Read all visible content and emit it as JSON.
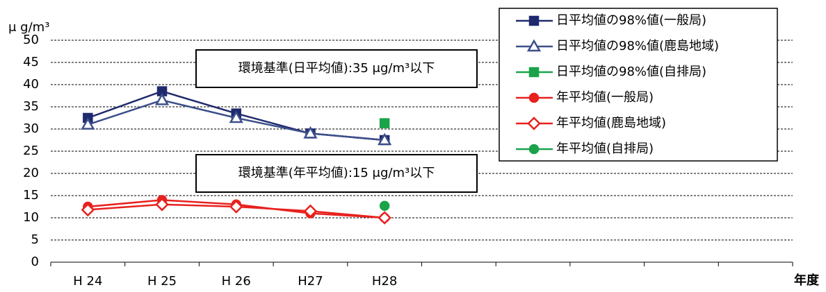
{
  "chart_data": {
    "type": "line",
    "y_label": "μ g/m³",
    "x_label": "年度",
    "annotations": [
      "環境基準(日平均値):35 μg/m³以下",
      "環境基準(年平均値):15 μg/m³以下"
    ],
    "categories": [
      "H 24",
      "H 25",
      "H 26",
      "H27",
      "H28",
      null,
      null,
      null,
      null,
      null
    ],
    "ylim": [
      0,
      50
    ],
    "yticks": [
      0,
      5,
      10,
      15,
      20,
      25,
      30,
      35,
      40,
      45,
      50
    ],
    "grid": true,
    "legend": "top-right",
    "series": [
      {
        "name": "日平均値の98%値(一般局)",
        "color": "#1f2a6e",
        "marker": "square",
        "filled": true,
        "values": [
          32.5,
          38.5,
          33.5,
          29,
          27.5,
          null,
          null,
          null,
          null,
          null
        ]
      },
      {
        "name": "日平均値の98%値(鹿島地域)",
        "color": "#3d4f8a",
        "marker": "triangle",
        "filled": false,
        "values": [
          31,
          36.5,
          32.5,
          29,
          27.5,
          null,
          null,
          null,
          null,
          null
        ]
      },
      {
        "name": "日平均値の98%値(自排局)",
        "color": "#1aa34a",
        "marker": "square",
        "filled": true,
        "values": [
          null,
          null,
          null,
          null,
          31.3,
          null,
          null,
          null,
          null,
          null
        ]
      },
      {
        "name": "年平均値(一般局)",
        "color": "#e8211e",
        "marker": "circle",
        "filled": true,
        "values": [
          12.5,
          14,
          13,
          11,
          10,
          null,
          null,
          null,
          null,
          null
        ]
      },
      {
        "name": "年平均値(鹿島地域)",
        "color": "#e8211e",
        "marker": "diamond",
        "filled": false,
        "values": [
          11.8,
          13,
          12.5,
          11.5,
          10,
          null,
          null,
          null,
          null,
          null
        ]
      },
      {
        "name": "年平均値(自排局)",
        "color": "#1aa34a",
        "marker": "circle",
        "filled": true,
        "values": [
          null,
          null,
          null,
          null,
          12.7,
          null,
          null,
          null,
          null,
          null
        ]
      }
    ]
  }
}
